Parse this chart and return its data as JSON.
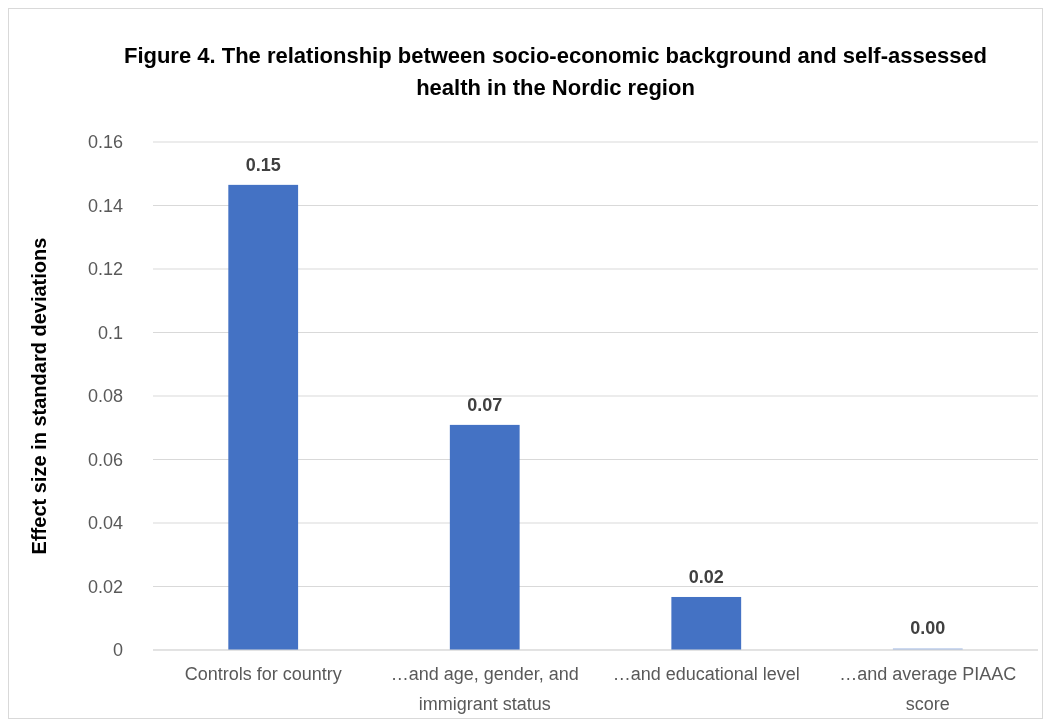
{
  "chart_data": {
    "type": "bar",
    "title": "Figure 4. The relationship between socio-economic background and self-assessed health in the Nordic region",
    "ylabel": "Effect size in standard deviations",
    "categories": [
      "Controls for country",
      "…and age, gender, and immigrant status",
      "…and educational level",
      "…and average PIAAC score"
    ],
    "values": [
      0.1465,
      0.0709,
      0.0167,
      0.0005
    ],
    "colors": [
      "#4472c4",
      "#4472c4",
      "#4472c4",
      "#a9bfe6"
    ],
    "value_labels": [
      "0.15",
      "0.07",
      "0.02",
      "0.00"
    ],
    "ylim": [
      0,
      0.16
    ],
    "yticks": [
      0,
      0.02,
      0.04,
      0.06,
      0.08,
      0.1,
      0.12,
      0.14,
      0.16
    ],
    "grid": "y"
  }
}
